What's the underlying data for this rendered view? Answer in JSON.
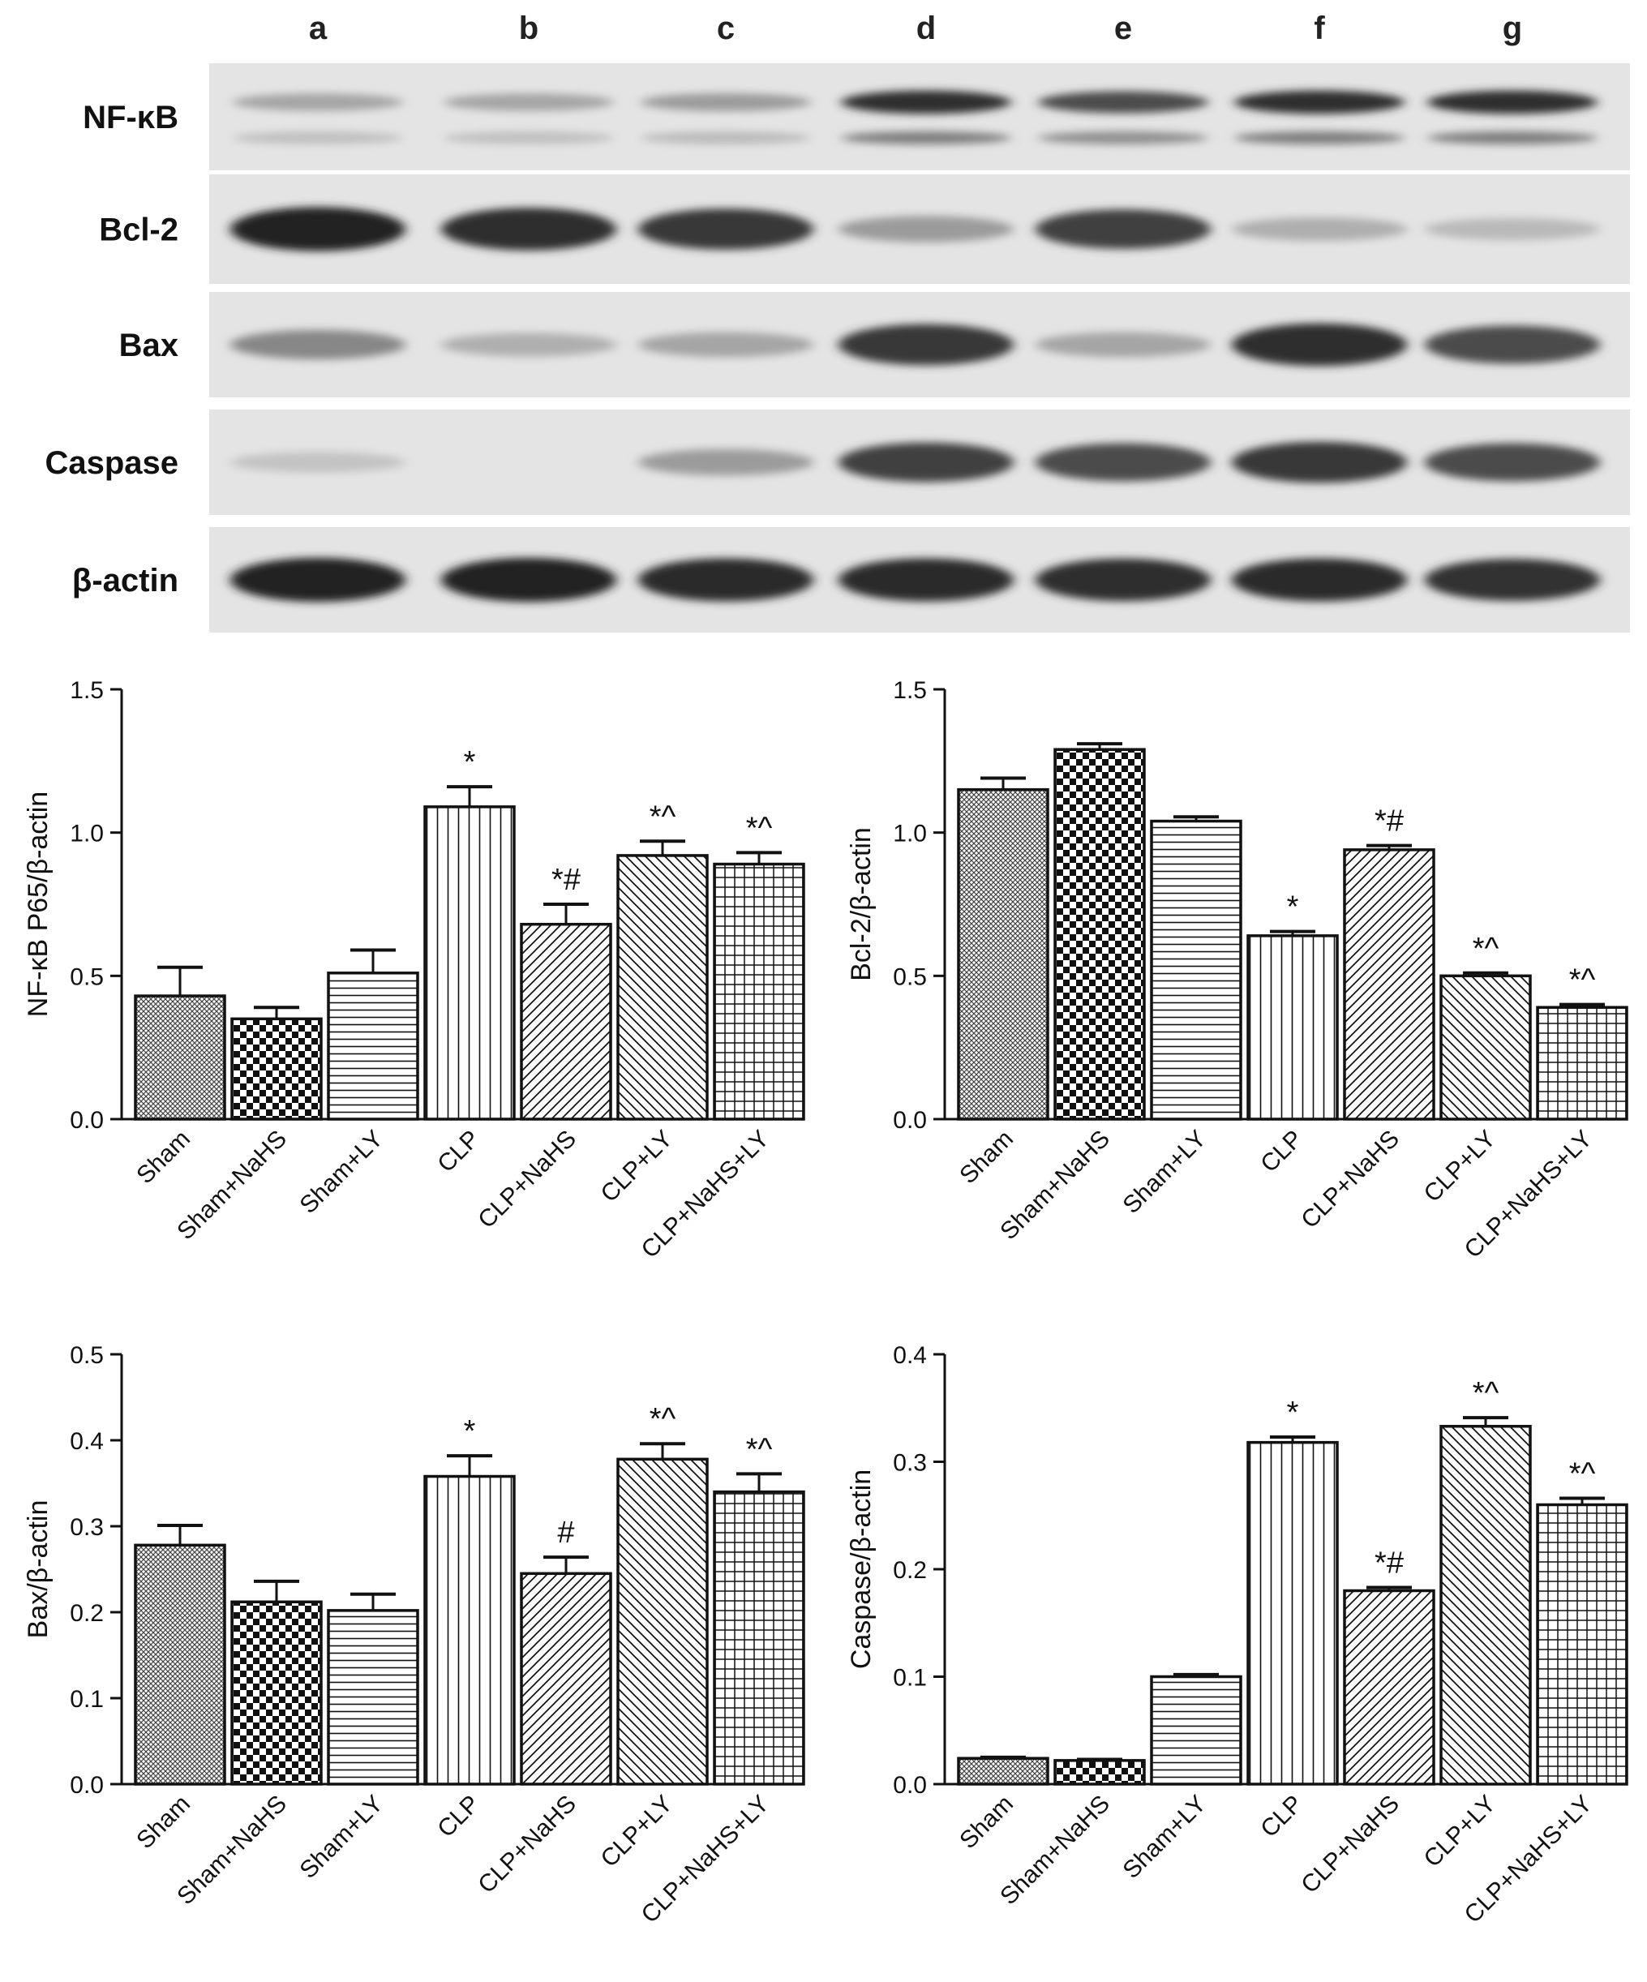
{
  "blot": {
    "lanes": [
      "a",
      "b",
      "c",
      "d",
      "e",
      "f",
      "g"
    ],
    "rows": [
      {
        "label": "NF-κB",
        "intensity": [
          0.3,
          0.3,
          0.35,
          0.9,
          0.75,
          0.9,
          0.9
        ],
        "double": true
      },
      {
        "label": "Bcl-2",
        "intensity": [
          0.95,
          0.9,
          0.85,
          0.35,
          0.8,
          0.25,
          0.2
        ],
        "double": false
      },
      {
        "label": "Bax",
        "intensity": [
          0.45,
          0.25,
          0.3,
          0.85,
          0.3,
          0.9,
          0.75
        ],
        "double": false
      },
      {
        "label": "Caspase",
        "intensity": [
          0.15,
          0.0,
          0.35,
          0.8,
          0.75,
          0.85,
          0.75
        ],
        "double": false
      },
      {
        "label": "β-actin",
        "intensity": [
          0.95,
          0.95,
          0.92,
          0.92,
          0.9,
          0.92,
          0.88
        ],
        "double": false
      }
    ]
  },
  "chart_data": [
    {
      "type": "bar",
      "ylabel": "NF-κB P65/β-actin",
      "ylim": [
        0,
        1.5
      ],
      "yticks": [
        "0.0",
        "0.5",
        "1.0",
        "1.5"
      ],
      "categories": [
        "Sham",
        "Sham+NaHS",
        "Sham+LY",
        "CLP",
        "CLP+NaHS",
        "CLP+LY",
        "CLP+NaHS+LY"
      ],
      "values": [
        0.43,
        0.35,
        0.51,
        1.09,
        0.68,
        0.92,
        0.89
      ],
      "errors": [
        0.1,
        0.04,
        0.08,
        0.07,
        0.07,
        0.05,
        0.04
      ],
      "annotations": [
        "",
        "",
        "",
        "*",
        "*#",
        "*^",
        "*^"
      ]
    },
    {
      "type": "bar",
      "ylabel": "Bcl-2/β-actin",
      "ylim": [
        0,
        1.5
      ],
      "yticks": [
        "0.0",
        "0.5",
        "1.0",
        "1.5"
      ],
      "categories": [
        "Sham",
        "Sham+NaHS",
        "Sham+LY",
        "CLP",
        "CLP+NaHS",
        "CLP+LY",
        "CLP+NaHS+LY"
      ],
      "values": [
        1.15,
        1.29,
        1.04,
        0.64,
        0.94,
        0.5,
        0.39
      ],
      "errors": [
        0.04,
        0.02,
        0.015,
        0.015,
        0.015,
        0.01,
        0.01
      ],
      "annotations": [
        "",
        "",
        "",
        "*",
        "*#",
        "*^",
        "*^"
      ]
    },
    {
      "type": "bar",
      "ylabel": "Bax/β-actin",
      "ylim": [
        0,
        0.5
      ],
      "yticks": [
        "0.0",
        "0.1",
        "0.2",
        "0.3",
        "0.4",
        "0.5"
      ],
      "categories": [
        "Sham",
        "Sham+NaHS",
        "Sham+LY",
        "CLP",
        "CLP+NaHS",
        "CLP+LY",
        "CLP+NaHS+LY"
      ],
      "values": [
        0.278,
        0.212,
        0.202,
        0.358,
        0.245,
        0.378,
        0.34
      ],
      "errors": [
        0.023,
        0.024,
        0.019,
        0.024,
        0.019,
        0.018,
        0.021
      ],
      "annotations": [
        "",
        "",
        "",
        "*",
        "#",
        "*^",
        "*^"
      ]
    },
    {
      "type": "bar",
      "ylabel": "Caspase/β-actin",
      "ylim": [
        0,
        0.4
      ],
      "yticks": [
        "0.0",
        "0.1",
        "0.2",
        "0.3",
        "0.4"
      ],
      "categories": [
        "Sham",
        "Sham+NaHS",
        "Sham+LY",
        "CLP",
        "CLP+NaHS",
        "CLP+LY",
        "CLP+NaHS+LY"
      ],
      "values": [
        0.024,
        0.022,
        0.1,
        0.318,
        0.18,
        0.333,
        0.26
      ],
      "errors": [
        0.001,
        0.001,
        0.002,
        0.005,
        0.003,
        0.008,
        0.006
      ],
      "annotations": [
        "",
        "",
        "",
        "*",
        "*#",
        "*^",
        "*^"
      ]
    }
  ]
}
